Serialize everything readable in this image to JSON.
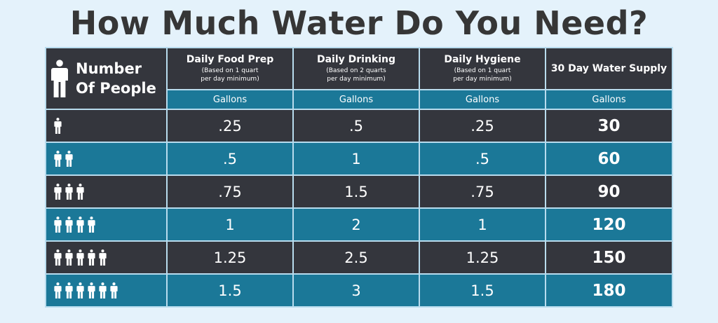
{
  "title": "How Much Water Do You Need?",
  "colors": {
    "background": "#e4f2fb",
    "dark_row": "#34363d",
    "teal_row": "#1b7898",
    "border": "#b8dcee"
  },
  "header": {
    "corner_icon": "person-icon",
    "corner_line1": "Number",
    "corner_line2": "Of People",
    "columns": [
      {
        "title": "Daily Food Prep",
        "sub1": "(Based on 1 quart",
        "sub2": "per day minimum)",
        "unit": "Gallons"
      },
      {
        "title": "Daily Drinking",
        "sub1": "(Based on 2 quarts",
        "sub2": "per day minimum)",
        "unit": "Gallons"
      },
      {
        "title": "Daily Hygiene",
        "sub1": "(Based on 1 quart",
        "sub2": "per day minimum)",
        "unit": "Gallons"
      },
      {
        "title": "30 Day Water Supply",
        "sub1": "",
        "sub2": "",
        "unit": "Gallons"
      }
    ]
  },
  "rows": [
    {
      "people": 1,
      "food": ".25",
      "drinking": ".5",
      "hygiene": ".25",
      "supply": "30"
    },
    {
      "people": 2,
      "food": ".5",
      "drinking": "1",
      "hygiene": ".5",
      "supply": "60"
    },
    {
      "people": 3,
      "food": ".75",
      "drinking": "1.5",
      "hygiene": ".75",
      "supply": "90"
    },
    {
      "people": 4,
      "food": "1",
      "drinking": "2",
      "hygiene": "1",
      "supply": "120"
    },
    {
      "people": 5,
      "food": "1.25",
      "drinking": "2.5",
      "hygiene": "1.25",
      "supply": "150"
    },
    {
      "people": 6,
      "food": "1.5",
      "drinking": "3",
      "hygiene": "1.5",
      "supply": "180"
    }
  ]
}
